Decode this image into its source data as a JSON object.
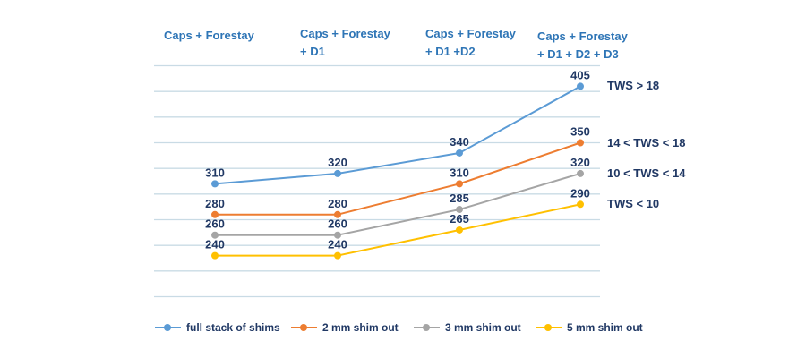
{
  "chart_data": {
    "type": "line",
    "title": "",
    "categories": [
      "Caps + Forestay",
      "Caps + Forestay + D1",
      "Caps + Forestay + D1 +D2",
      "Caps + Forestay + D1 + D2 + D3"
    ],
    "headers": [
      {
        "line1": "Caps + Forestay",
        "line2": ""
      },
      {
        "line1": "Caps + Forestay",
        "line2": "+ D1"
      },
      {
        "line1": "Caps + Forestay",
        "line2": "+ D1 +D2"
      },
      {
        "line1": "Caps + Forestay",
        "line2": "+ D1 + D2 + D3"
      }
    ],
    "series": [
      {
        "name": "full stack of shims",
        "color": "#5B9BD5",
        "values": [
          310,
          320,
          340,
          405
        ],
        "right_label": "TWS > 18"
      },
      {
        "name": "2 mm shim out",
        "color": "#ED7D31",
        "values": [
          280,
          280,
          310,
          350
        ],
        "right_label": "14 < TWS < 18"
      },
      {
        "name": "3 mm shim out",
        "color": "#A5A5A5",
        "values": [
          260,
          260,
          285,
          320
        ],
        "right_label": "10 < TWS < 14"
      },
      {
        "name": "5 mm shim out",
        "color": "#FFC000",
        "values": [
          240,
          240,
          265,
          290
        ],
        "right_label": "TWS < 10"
      }
    ],
    "ylim": [
      200,
      425
    ],
    "grid_step": 25,
    "grid": true,
    "grid_color": "#C9DBE5",
    "header_color": "#2E75B6",
    "label_color": "#203864",
    "legend_position": "bottom",
    "xlabel": "",
    "ylabel": ""
  }
}
